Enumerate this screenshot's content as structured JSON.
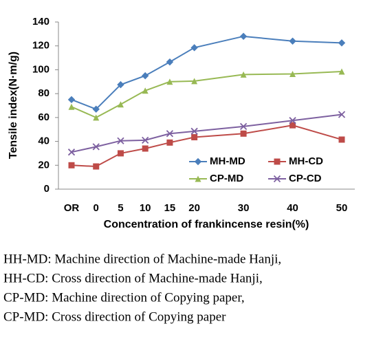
{
  "chart_data": {
    "type": "line",
    "y_label": "Tensile index(N·m/g)",
    "x_label": "Concentration of frankincense resin(%)",
    "categories": [
      "OR",
      "0",
      "5",
      "10",
      "15",
      "20",
      "30",
      "40",
      "50"
    ],
    "series": [
      {
        "name": "MH-MD",
        "color": "#4a7ebb",
        "marker": "diamond",
        "values": [
          75,
          67,
          87.5,
          95,
          106.5,
          118.5,
          128,
          124,
          122.5
        ]
      },
      {
        "name": "MH-CD",
        "color": "#be4b48",
        "marker": "square",
        "values": [
          20,
          19,
          30,
          34,
          39,
          43.5,
          46.5,
          53.5,
          41.5
        ]
      },
      {
        "name": "CP-MD",
        "color": "#98b954",
        "marker": "triangle",
        "values": [
          69,
          60,
          71,
          82.5,
          90,
          90.5,
          96,
          96.5,
          98.5
        ]
      },
      {
        "name": "CP-CD",
        "color": "#7d60a0",
        "marker": "x",
        "values": [
          31,
          35.5,
          40.5,
          41,
          46.5,
          48.5,
          52.5,
          57.5,
          62.5
        ]
      }
    ],
    "ylim": [
      0,
      140
    ],
    "yticks": [
      0,
      20,
      40,
      60,
      80,
      100,
      120,
      140
    ],
    "grid": false,
    "legend": "lower right"
  },
  "caption": [
    "HH-MD: Machine direction of Machine-made Hanji,",
    "HH-CD: Cross direction of Machine-made Hanji,",
    "CP-MD: Machine direction of Copying paper,",
    "CP-MD: Cross direction of Copying paper"
  ]
}
